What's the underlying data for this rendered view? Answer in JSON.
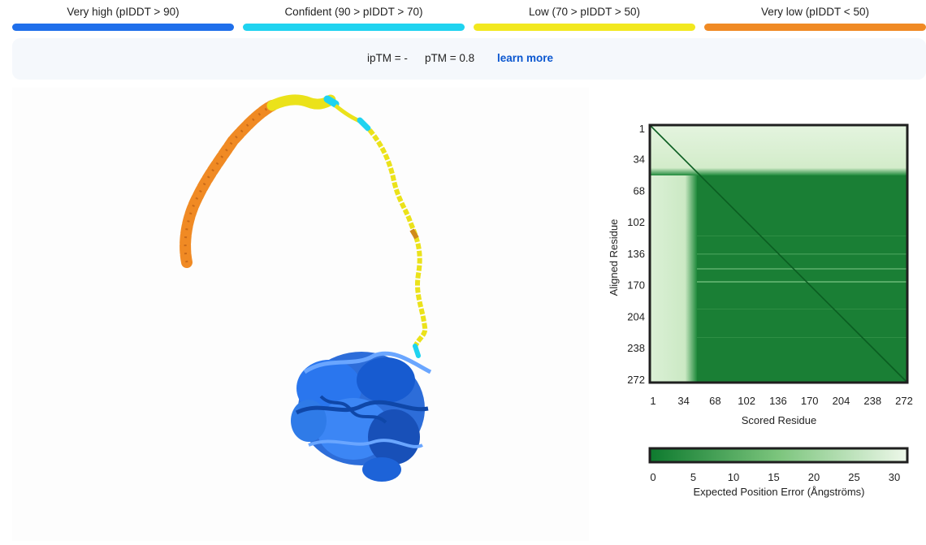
{
  "legend": [
    {
      "label": "Very high (pIDDT > 90)",
      "color": "#1f6feb"
    },
    {
      "label": "Confident (90 > pIDDT > 70)",
      "color": "#1fd3f0"
    },
    {
      "label": "Low (70 > pIDDT > 50)",
      "color": "#f2e81f"
    },
    {
      "label": "Very low (pIDDT < 50)",
      "color": "#f08a24"
    }
  ],
  "metrics": {
    "iptm": "ipTM = -",
    "ptm": "pTM = 0.8",
    "learn_more": "learn more"
  },
  "chart_data": {
    "type": "heatmap",
    "xlabel": "Scored Residue",
    "ylabel": "Aligned Residue",
    "x_ticks": [
      "1",
      "34",
      "68",
      "102",
      "136",
      "170",
      "204",
      "238",
      "272"
    ],
    "y_ticks": [
      "1",
      "34",
      "68",
      "102",
      "136",
      "170",
      "204",
      "238",
      "272"
    ],
    "colorbar": {
      "label": "Expected Position Error (Ångströms)",
      "ticks": [
        "0",
        "5",
        "10",
        "15",
        "20",
        "25",
        "30"
      ],
      "range": [
        0,
        30
      ],
      "colors": [
        "#0d7a2e",
        "#e9f6e5"
      ]
    }
  }
}
